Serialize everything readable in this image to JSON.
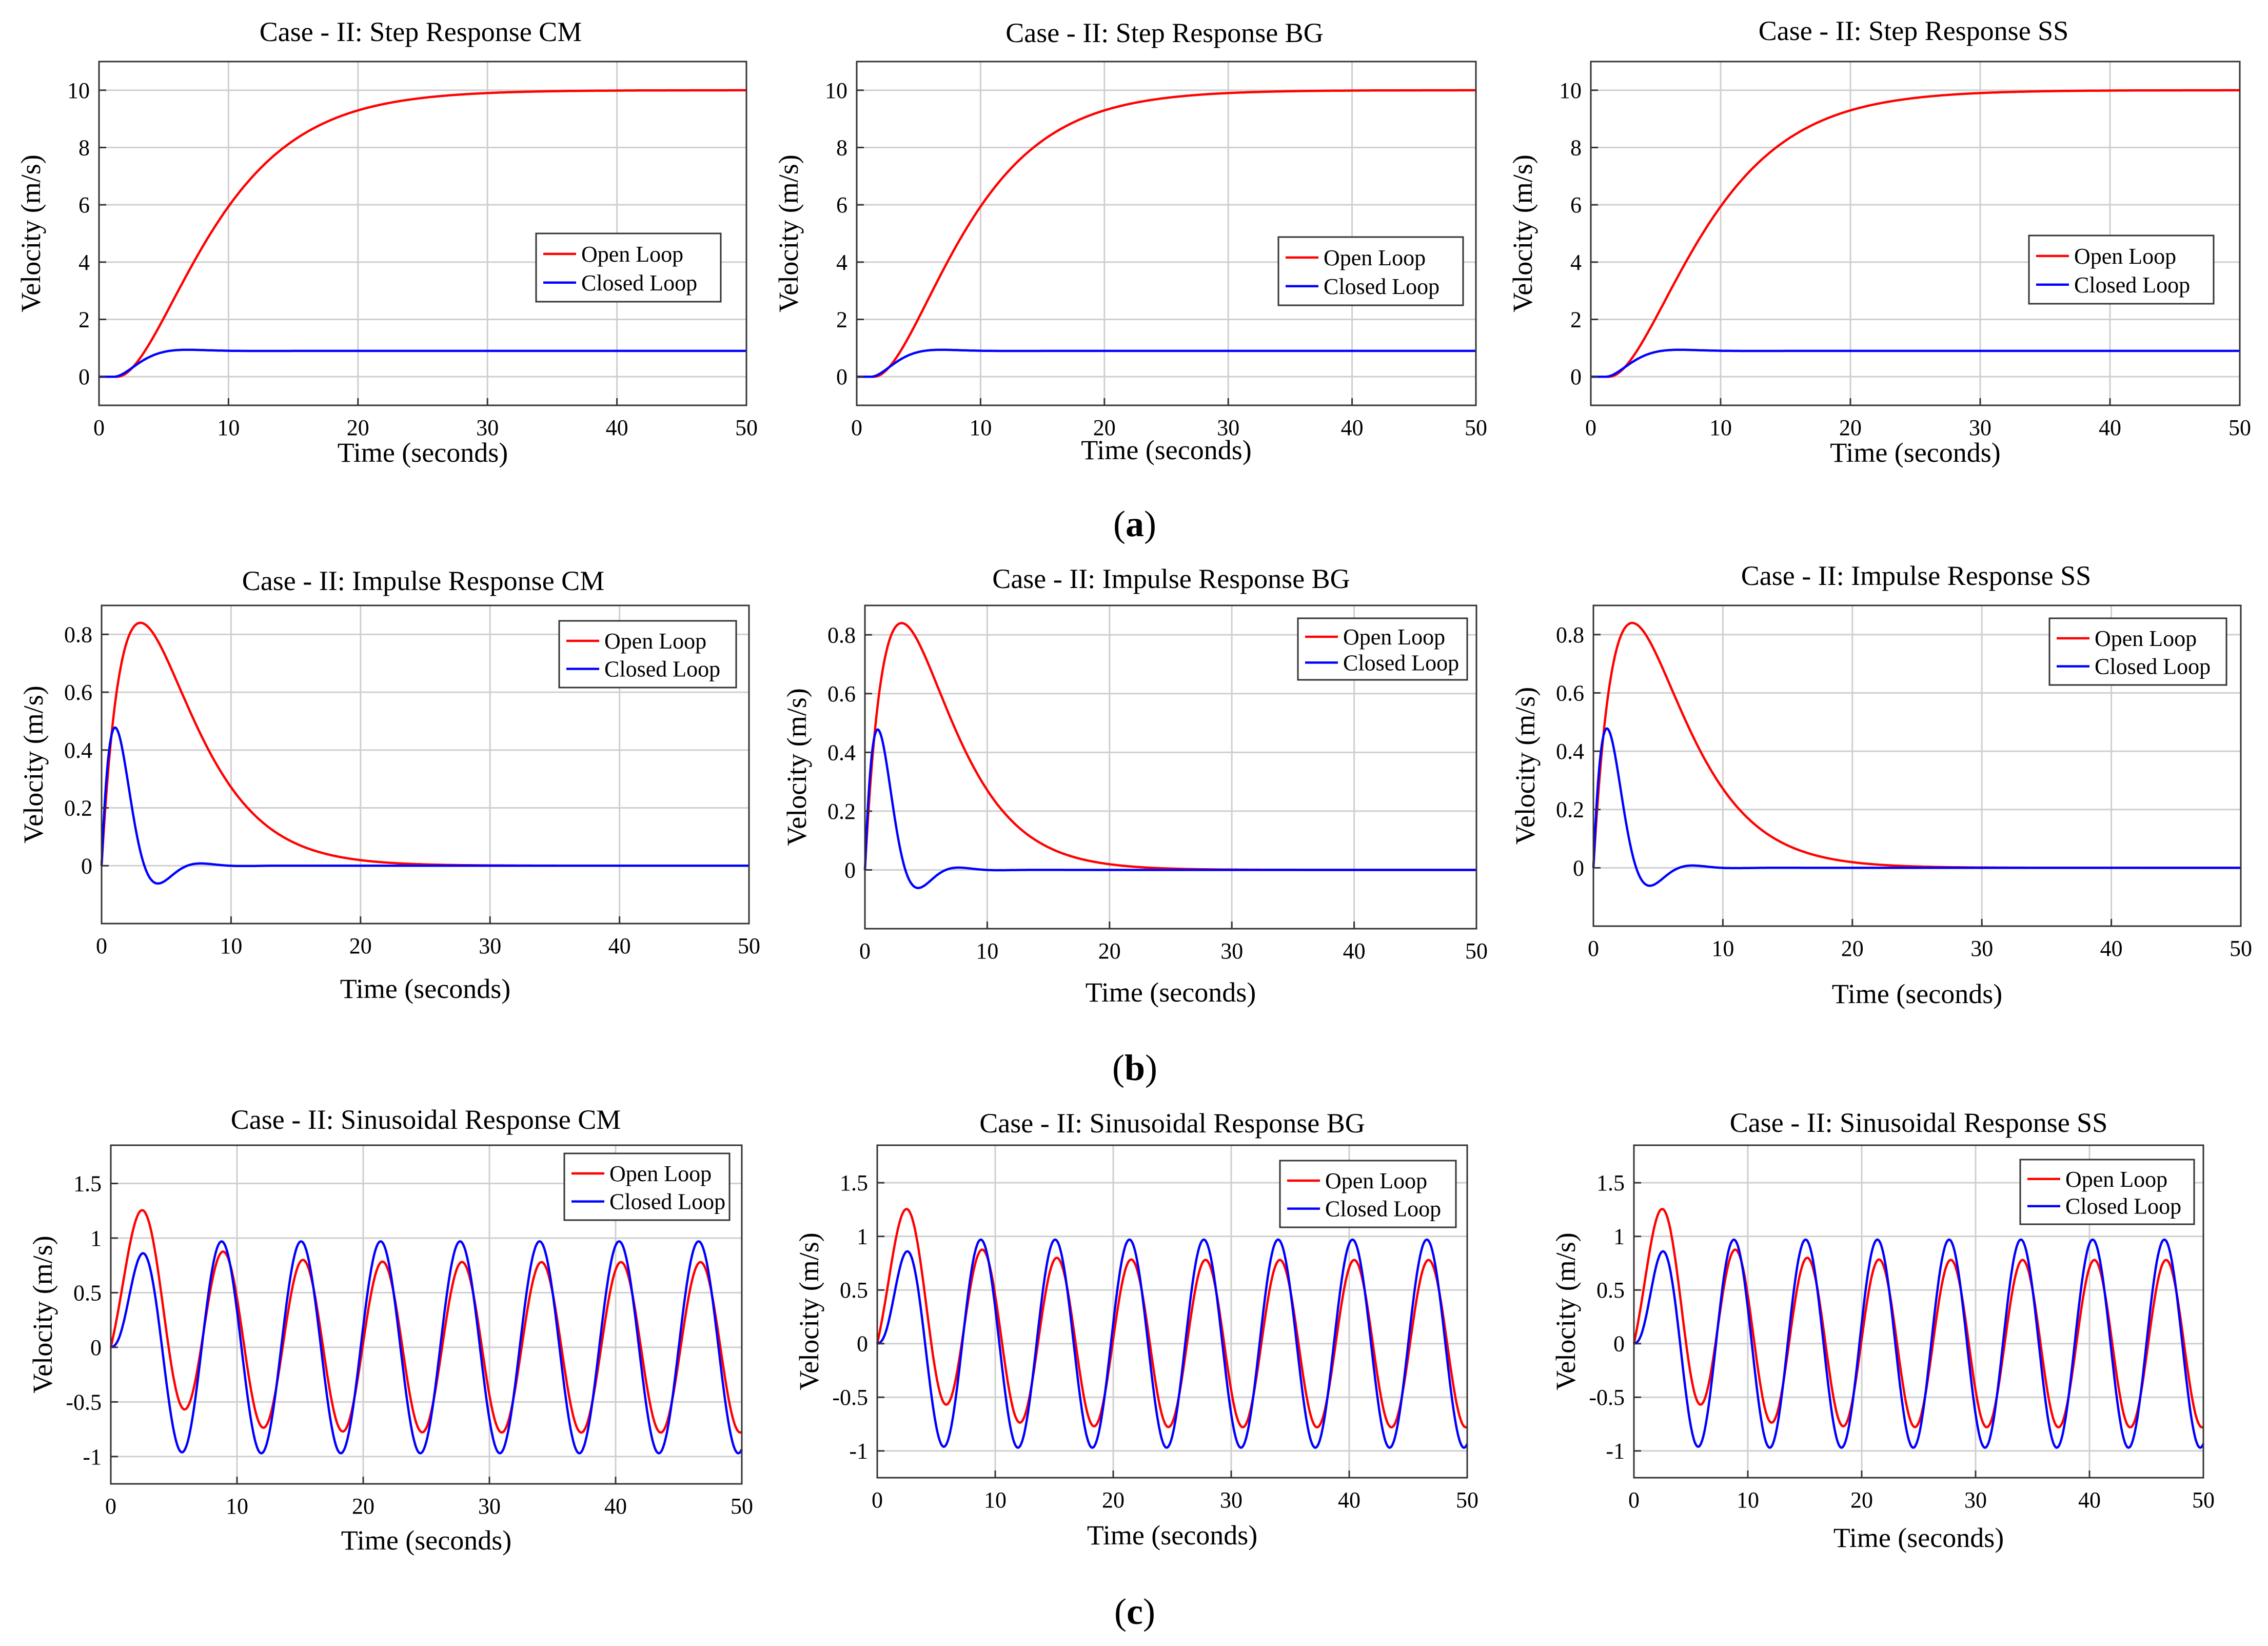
{
  "chart_data": [
    {
      "type": "line",
      "id": "a1",
      "title": "Case - II: Step Response CM",
      "xlabel": "Time (seconds)",
      "ylabel": "Velocity (m/s)",
      "xlim": [
        0,
        50
      ],
      "ylim": [
        -1,
        11
      ],
      "xticks": [
        0,
        10,
        20,
        30,
        40,
        50
      ],
      "yticks": [
        0,
        2,
        4,
        6,
        8,
        10
      ],
      "ytick_labels": [
        "0",
        "2",
        "4",
        "6",
        "8",
        "10"
      ],
      "grid": true,
      "legend": [
        "Open Loop",
        "Closed Loop"
      ],
      "legend_position": "center-right",
      "response": "step"
    },
    {
      "type": "line",
      "id": "a2",
      "title": "Case - II: Step Response BG",
      "xlabel": "Time (seconds)",
      "ylabel": "Velocity (m/s)",
      "xlim": [
        0,
        50
      ],
      "ylim": [
        -1,
        11
      ],
      "xticks": [
        0,
        10,
        20,
        30,
        40,
        50
      ],
      "yticks": [
        0,
        2,
        4,
        6,
        8,
        10
      ],
      "ytick_labels": [
        "0",
        "2",
        "4",
        "6",
        "8",
        "10"
      ],
      "grid": true,
      "legend": [
        "Open Loop",
        "Closed Loop"
      ],
      "legend_position": "center-right",
      "response": "step"
    },
    {
      "type": "line",
      "id": "a3",
      "title": "Case - II: Step Response SS",
      "xlabel": "Time (seconds)",
      "ylabel": "Velocity (m/s)",
      "xlim": [
        0,
        50
      ],
      "ylim": [
        -1,
        11
      ],
      "xticks": [
        0,
        10,
        20,
        30,
        40,
        50
      ],
      "yticks": [
        0,
        2,
        4,
        6,
        8,
        10
      ],
      "ytick_labels": [
        "0",
        "2",
        "4",
        "6",
        "8",
        "10"
      ],
      "grid": true,
      "legend": [
        "Open Loop",
        "Closed Loop"
      ],
      "legend_position": "center-right",
      "response": "step"
    },
    {
      "type": "line",
      "id": "b1",
      "title": "Case - II: Impulse Response CM",
      "xlabel": "Time (seconds)",
      "ylabel": "Velocity (m/s)",
      "xlim": [
        0,
        50
      ],
      "ylim": [
        -0.2,
        0.9
      ],
      "xticks": [
        0,
        10,
        20,
        30,
        40,
        50
      ],
      "yticks": [
        0,
        0.2,
        0.4,
        0.6,
        0.8
      ],
      "ytick_labels": [
        "0",
        "0.2",
        "0.4",
        "0.6",
        "0.8"
      ],
      "grid": true,
      "legend": [
        "Open Loop",
        "Closed Loop"
      ],
      "legend_position": "top-right",
      "response": "impulse"
    },
    {
      "type": "line",
      "id": "b2",
      "title": "Case - II: Impulse Response BG",
      "xlabel": "Time (seconds)",
      "ylabel": "Velocity (m/s)",
      "xlim": [
        0,
        50
      ],
      "ylim": [
        -0.2,
        0.9
      ],
      "xticks": [
        0,
        10,
        20,
        30,
        40,
        50
      ],
      "yticks": [
        0,
        0.2,
        0.4,
        0.6,
        0.8
      ],
      "ytick_labels": [
        "0",
        "0.2",
        "0.4",
        "0.6",
        "0.8"
      ],
      "grid": true,
      "legend": [
        "Open Loop",
        "Closed Loop"
      ],
      "legend_position": "top-right",
      "response": "impulse"
    },
    {
      "type": "line",
      "id": "b3",
      "title": "Case - II: Impulse Response SS",
      "xlabel": "Time (seconds)",
      "ylabel": "Velocity (m/s)",
      "xlim": [
        0,
        50
      ],
      "ylim": [
        -0.2,
        0.9
      ],
      "xticks": [
        0,
        10,
        20,
        30,
        40,
        50
      ],
      "yticks": [
        0,
        0.2,
        0.4,
        0.6,
        0.8
      ],
      "ytick_labels": [
        "0",
        "0.2",
        "0.4",
        "0.6",
        "0.8"
      ],
      "grid": true,
      "legend": [
        "Open Loop",
        "Closed Loop"
      ],
      "legend_position": "top-right",
      "response": "impulse"
    },
    {
      "type": "line",
      "id": "c1",
      "title": "Case - II: Sinusoidal Response CM",
      "xlabel": "Time (seconds)",
      "ylabel": "Velocity (m/s)",
      "xlim": [
        0,
        50
      ],
      "ylim": [
        -1.25,
        1.85
      ],
      "xticks": [
        0,
        10,
        20,
        30,
        40,
        50
      ],
      "yticks": [
        -1,
        -0.5,
        0,
        0.5,
        1,
        1.5
      ],
      "ytick_labels": [
        "-1",
        "-0.5",
        "0",
        "0.5",
        "1",
        "1.5"
      ],
      "grid": true,
      "legend": [
        "Open Loop",
        "Closed Loop"
      ],
      "legend_position": "top-right",
      "response": "sinusoidal"
    },
    {
      "type": "line",
      "id": "c2",
      "title": "Case - II: Sinusoidal Response BG",
      "xlabel": "Time (seconds)",
      "ylabel": "Velocity (m/s)",
      "xlim": [
        0,
        50
      ],
      "ylim": [
        -1.25,
        1.85
      ],
      "xticks": [
        0,
        10,
        20,
        30,
        40,
        50
      ],
      "yticks": [
        -1,
        -0.5,
        0,
        0.5,
        1,
        1.5
      ],
      "ytick_labels": [
        "-1",
        "-0.5",
        "0",
        "0.5",
        "1",
        "1.5"
      ],
      "grid": true,
      "legend": [
        "Open Loop",
        "Closed Loop"
      ],
      "legend_position": "top-right",
      "response": "sinusoidal"
    },
    {
      "type": "line",
      "id": "c3",
      "title": "Case - II: Sinusoidal Response SS",
      "xlabel": "Time (seconds)",
      "ylabel": "Velocity (m/s)",
      "xlim": [
        0,
        50
      ],
      "ylim": [
        -1.25,
        1.85
      ],
      "xticks": [
        0,
        10,
        20,
        30,
        40,
        50
      ],
      "yticks": [
        -1,
        -0.5,
        0,
        0.5,
        1,
        1.5
      ],
      "ytick_labels": [
        "-1",
        "-0.5",
        "0",
        "0.5",
        "1",
        "1.5"
      ],
      "grid": true,
      "legend": [
        "Open Loop",
        "Closed Loop"
      ],
      "legend_position": "top-right",
      "response": "sinusoidal"
    }
  ],
  "series_colors": {
    "Open Loop": "#ff0000",
    "Closed Loop": "#0000ff"
  },
  "captions": [
    {
      "id": "a",
      "open": "(",
      "letter": "a",
      "close": ")"
    },
    {
      "id": "b",
      "open": "(",
      "letter": "b",
      "close": ")"
    },
    {
      "id": "c",
      "open": "(",
      "letter": "c",
      "close": ")"
    }
  ]
}
